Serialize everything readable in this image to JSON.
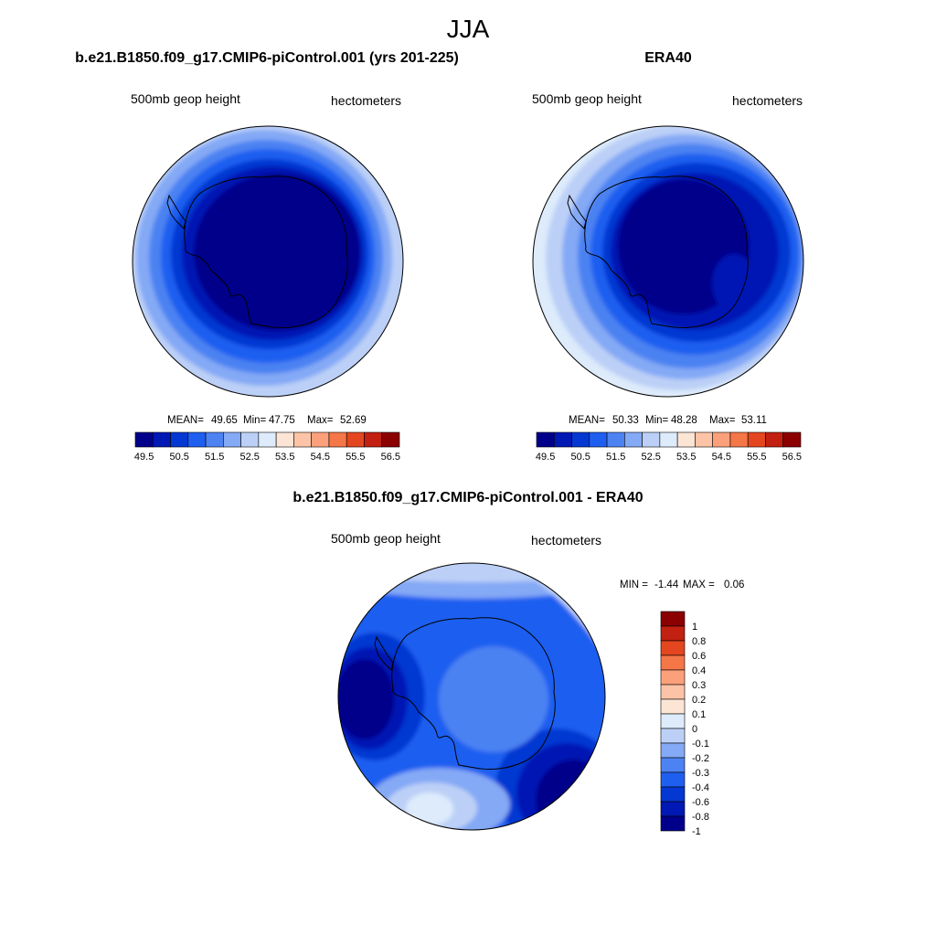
{
  "figure": {
    "season": "JJA",
    "diff_title": "b.e21.B1850.f09_g17.CMIP6-piControl.001 - ERA40"
  },
  "chart_data": [
    {
      "type": "heatmap",
      "projection": "polar-stereographic-south",
      "title": "b.e21.B1850.f09_g17.CMIP6-piControl.001 (yrs 201-225)",
      "left_label": "500mb geop height",
      "right_label": "hectometers",
      "stats": {
        "mean_label": "MEAN=",
        "mean": "49.65",
        "min_label": "Min=",
        "min": "47.75",
        "max_label": "Max=",
        "max": "52.69"
      },
      "levels": [
        49.5,
        50,
        50.5,
        51,
        51.5,
        52,
        52.5,
        53,
        53.5,
        54,
        54.5,
        55,
        55.5,
        56,
        56.5
      ],
      "colorbar_ticks": [
        "49.5",
        "50.5",
        "51.5",
        "52.5",
        "53.5",
        "54.5",
        "55.5",
        "56.5"
      ],
      "colors": [
        "#00008b",
        "#0018b4",
        "#0538d2",
        "#1f5ff0",
        "#4c82f2",
        "#84a9f5",
        "#bcd0f7",
        "#ddebfb",
        "#fde5d6",
        "#fcc3a6",
        "#fca07c",
        "#f57647",
        "#e4461f",
        "#c22010",
        "#8b0000"
      ],
      "colorbar_orientation": "horizontal"
    },
    {
      "type": "heatmap",
      "projection": "polar-stereographic-south",
      "title": "ERA40",
      "left_label": "500mb geop height",
      "right_label": "hectometers",
      "stats": {
        "mean_label": "MEAN=",
        "mean": "50.33",
        "min_label": "Min=",
        "min": "48.28",
        "max_label": "Max=",
        "max": "53.11"
      },
      "levels": [
        49.5,
        50,
        50.5,
        51,
        51.5,
        52,
        52.5,
        53,
        53.5,
        54,
        54.5,
        55,
        55.5,
        56,
        56.5
      ],
      "colorbar_ticks": [
        "49.5",
        "50.5",
        "51.5",
        "52.5",
        "53.5",
        "54.5",
        "55.5",
        "56.5"
      ],
      "colors": [
        "#00008b",
        "#0018b4",
        "#0538d2",
        "#1f5ff0",
        "#4c82f2",
        "#84a9f5",
        "#bcd0f7",
        "#ddebfb",
        "#fde5d6",
        "#fcc3a6",
        "#fca07c",
        "#f57647",
        "#e4461f",
        "#c22010",
        "#8b0000"
      ],
      "colorbar_orientation": "horizontal"
    },
    {
      "type": "heatmap",
      "projection": "polar-stereographic-south",
      "title": "",
      "left_label": "500mb geop height",
      "right_label": "hectometers",
      "stats": {
        "min_label": "MIN =",
        "min": "-1.44",
        "max_label": "MAX =",
        "max": "0.06"
      },
      "levels": [
        -1,
        -0.8,
        -0.6,
        -0.4,
        -0.3,
        -0.2,
        -0.1,
        0,
        0.1,
        0.2,
        0.3,
        0.4,
        0.6,
        0.8,
        1
      ],
      "colorbar_ticks": [
        "1",
        "0.8",
        "0.6",
        "0.4",
        "0.3",
        "0.2",
        "0.1",
        "0",
        "-0.1",
        "-0.2",
        "-0.3",
        "-0.4",
        "-0.6",
        "-0.8",
        "-1"
      ],
      "colors": [
        "#00008b",
        "#0018b4",
        "#0538d2",
        "#1f5ff0",
        "#4c82f2",
        "#84a9f5",
        "#bcd0f7",
        "#ddebfb",
        "#fde5d6",
        "#fcc3a6",
        "#fca07c",
        "#f57647",
        "#e4461f",
        "#c22010",
        "#8b0000"
      ],
      "colorbar_orientation": "vertical"
    }
  ]
}
